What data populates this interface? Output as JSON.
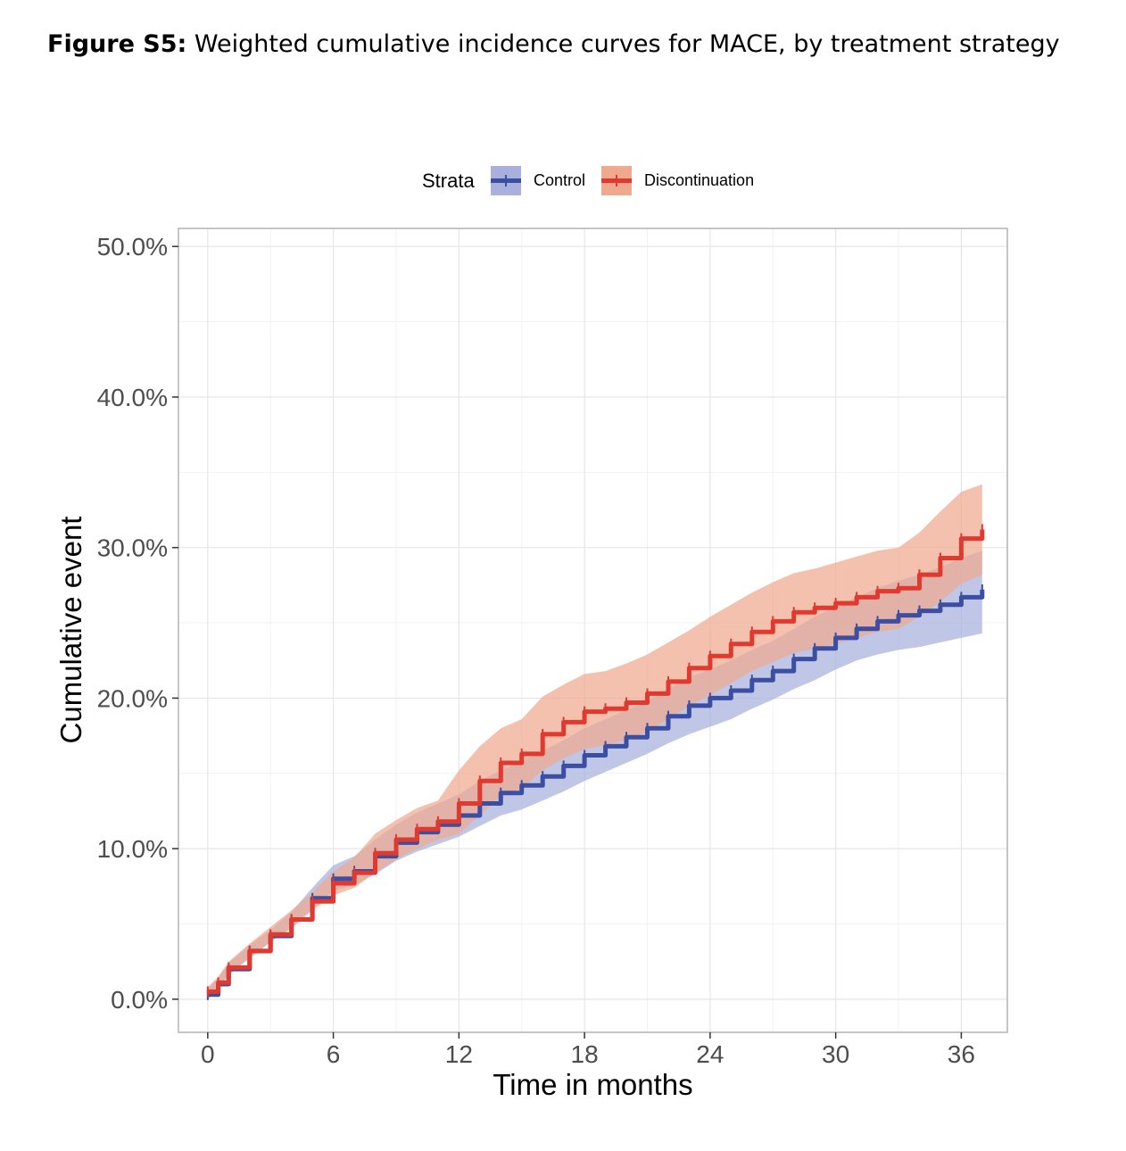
{
  "caption": {
    "label": "Figure S5:",
    "text": "Weighted cumulative incidence curves for MACE, by treatment strategy"
  },
  "colors": {
    "control": "#3b4ea2",
    "control_band": "#a8b0db",
    "discontinuation": "#e03a30",
    "discontinuation_band": "#eea98f",
    "grid": "#e6e6e6",
    "panel_border": "#b3b3b3",
    "axis_text": "#4d4d4d"
  },
  "chart_data": {
    "type": "line",
    "title": "",
    "xlabel": "Time in months",
    "ylabel": "Cumulative event",
    "xlim": [
      -1.4,
      38.2
    ],
    "ylim": [
      -2.2,
      51.2
    ],
    "x_ticks": [
      0,
      6,
      12,
      18,
      24,
      30,
      36
    ],
    "x_tick_labels": [
      "0",
      "6",
      "12",
      "18",
      "24",
      "30",
      "36"
    ],
    "y_ticks": [
      0,
      10,
      20,
      30,
      40,
      50
    ],
    "y_tick_labels": [
      "0.0%",
      "10.0%",
      "20.0%",
      "30.0%",
      "40.0%",
      "50.0%"
    ],
    "grid": true,
    "legend": {
      "title": "Strata",
      "position": "top",
      "entries": [
        "Control",
        "Discontinuation"
      ]
    },
    "series": [
      {
        "name": "Control",
        "x": [
          0,
          0.5,
          1,
          2,
          3,
          4,
          5,
          6,
          7,
          8,
          9,
          10,
          11,
          12,
          13,
          14,
          15,
          16,
          17,
          18,
          19,
          20,
          21,
          22,
          23,
          24,
          25,
          26,
          27,
          28,
          29,
          30,
          31,
          32,
          33,
          34,
          35,
          36,
          37
        ],
        "values": [
          0.3,
          1.0,
          2.0,
          3.2,
          4.2,
          5.3,
          6.7,
          8.0,
          8.5,
          9.5,
          10.4,
          11.1,
          11.6,
          12.2,
          13.0,
          13.7,
          14.2,
          14.8,
          15.5,
          16.2,
          16.8,
          17.4,
          18.0,
          18.8,
          19.5,
          20.0,
          20.5,
          21.2,
          21.8,
          22.6,
          23.3,
          24.0,
          24.6,
          25.1,
          25.5,
          25.8,
          26.2,
          26.7,
          27.2
        ],
        "lower": [
          0.0,
          0.6,
          1.6,
          2.8,
          3.8,
          4.8,
          6.0,
          7.2,
          7.6,
          8.3,
          9.2,
          9.8,
          10.3,
          10.8,
          11.5,
          12.2,
          12.6,
          13.2,
          13.8,
          14.5,
          15.1,
          15.7,
          16.3,
          17.0,
          17.6,
          18.1,
          18.6,
          19.3,
          19.9,
          20.6,
          21.2,
          21.9,
          22.5,
          22.9,
          23.2,
          23.4,
          23.7,
          24.0,
          24.3
        ],
        "upper": [
          0.7,
          1.4,
          2.4,
          3.6,
          4.6,
          5.8,
          7.4,
          8.9,
          9.5,
          10.6,
          11.6,
          12.4,
          13.0,
          13.6,
          14.5,
          15.2,
          15.8,
          16.5,
          17.2,
          18.0,
          18.6,
          19.2,
          19.8,
          20.6,
          21.4,
          21.9,
          22.5,
          23.2,
          23.8,
          24.6,
          25.4,
          26.1,
          26.7,
          27.3,
          27.8,
          28.2,
          28.7,
          29.3,
          29.8
        ]
      },
      {
        "name": "Discontinuation",
        "x": [
          0,
          0.5,
          1,
          2,
          3,
          4,
          5,
          6,
          7,
          8,
          9,
          10,
          11,
          12,
          13,
          14,
          15,
          16,
          17,
          18,
          19,
          20,
          21,
          22,
          23,
          24,
          25,
          26,
          27,
          28,
          29,
          30,
          31,
          32,
          33,
          34,
          35,
          36,
          37
        ],
        "values": [
          0.5,
          1.1,
          2.1,
          3.2,
          4.3,
          5.3,
          6.5,
          7.7,
          8.4,
          9.7,
          10.6,
          11.3,
          11.8,
          13.0,
          14.5,
          15.7,
          16.3,
          17.6,
          18.4,
          19.1,
          19.3,
          19.7,
          20.3,
          21.1,
          22.0,
          22.8,
          23.6,
          24.4,
          25.1,
          25.7,
          26.0,
          26.3,
          26.7,
          27.1,
          27.3,
          28.2,
          29.3,
          30.6,
          31.2
        ],
        "lower": [
          0.2,
          0.7,
          1.7,
          2.7,
          3.8,
          4.7,
          5.9,
          6.9,
          7.4,
          8.4,
          9.3,
          10.0,
          10.6,
          11.0,
          12.2,
          13.5,
          14.0,
          15.2,
          16.0,
          16.6,
          16.9,
          17.2,
          17.8,
          18.6,
          19.5,
          20.2,
          21.0,
          21.8,
          22.4,
          23.0,
          23.3,
          23.6,
          24.0,
          24.4,
          24.6,
          25.4,
          26.4,
          27.6,
          28.2
        ],
        "upper": [
          0.8,
          1.5,
          2.5,
          3.7,
          4.8,
          5.9,
          7.1,
          8.5,
          9.4,
          11.0,
          11.9,
          12.7,
          13.2,
          15.2,
          16.8,
          18.0,
          18.6,
          20.1,
          20.9,
          21.6,
          21.8,
          22.3,
          22.9,
          23.7,
          24.5,
          25.4,
          26.2,
          27.0,
          27.7,
          28.3,
          28.6,
          29.0,
          29.4,
          29.8,
          30.0,
          31.0,
          32.4,
          33.7,
          34.2
        ]
      }
    ]
  }
}
